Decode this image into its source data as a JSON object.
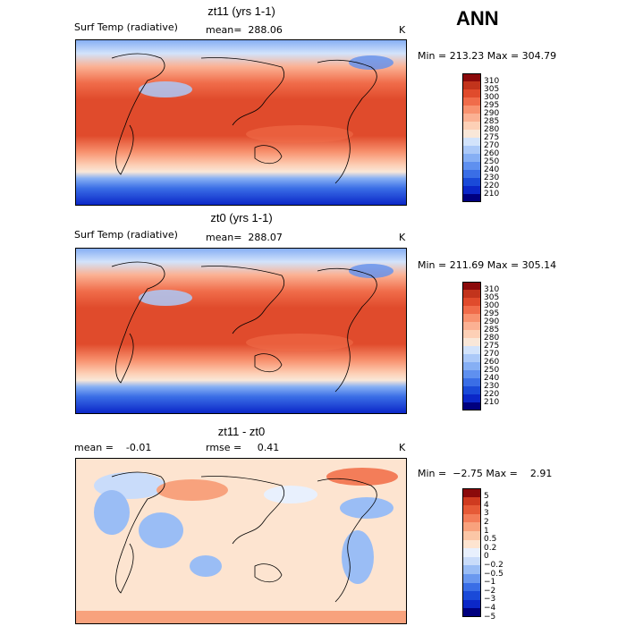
{
  "season": "ANN",
  "colors": {
    "temp": [
      "#00007f",
      "#0b27c8",
      "#1a4ad8",
      "#3a6ee6",
      "#5f90ef",
      "#86aff4",
      "#abc9f8",
      "#d2e3fb",
      "#f9e7d8",
      "#fdd0b6",
      "#fbb193",
      "#f8926f",
      "#f06c4a",
      "#e04b2c",
      "#c2341c",
      "#8b0a0b"
    ],
    "diff": [
      "#00007f",
      "#0b27c8",
      "#1a4ad8",
      "#3a6ee6",
      "#6a98ef",
      "#9abdf5",
      "#c9dcfa",
      "#e8f0fd",
      "#fde4d0",
      "#fbc6a6",
      "#f8a27d",
      "#f37d59",
      "#e65a37",
      "#cf3b20",
      "#8b0a0b"
    ]
  },
  "panels": [
    {
      "title": "zt11 (yrs 1-1)",
      "left_label": "Surf Temp (radiative)",
      "mid_label": "mean=  288.06",
      "unit": "K",
      "minmax": "Min = 213.23 Max = 304.79",
      "colorbar_ticks": [
        "310",
        "305",
        "300",
        "295",
        "290",
        "285",
        "280",
        "275",
        "270",
        "260",
        "250",
        "240",
        "230",
        "220",
        "210"
      ]
    },
    {
      "title": "zt0 (yrs 1-1)",
      "left_label": "Surf Temp (radiative)",
      "mid_label": "mean=  288.07",
      "unit": "K",
      "minmax": "Min = 211.69 Max = 305.14",
      "colorbar_ticks": [
        "310",
        "305",
        "300",
        "295",
        "290",
        "285",
        "280",
        "275",
        "270",
        "260",
        "250",
        "240",
        "230",
        "220",
        "210"
      ]
    },
    {
      "title": "zt11 - zt0",
      "left_label": "mean =    -0.01",
      "mid_label": "rmse =     0.41",
      "unit": "K",
      "minmax": "Min =  −2.75 Max =    2.91",
      "colorbar_ticks": [
        "5",
        "4",
        "3",
        "2",
        "1",
        "0.5",
        "0.2",
        "0",
        "−0.2",
        "−0.5",
        "−1",
        "−2",
        "−3",
        "−4",
        "−5"
      ]
    }
  ]
}
